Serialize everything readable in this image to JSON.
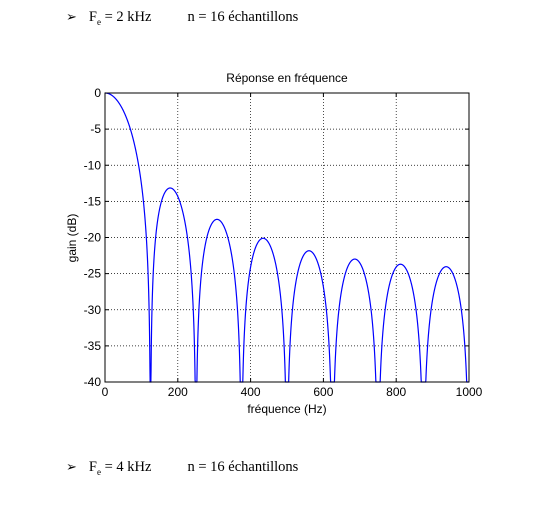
{
  "document": {
    "line1": {
      "bullet": "➢",
      "fe_var": "F",
      "fe_sub": "e",
      "fe_val": " = 2 kHz",
      "n": "n = 16 échantillons"
    },
    "line2": {
      "bullet": "➢",
      "fe_var": "F",
      "fe_sub": "e",
      "fe_val": " = 4 kHz",
      "n": "n = 16 échantillons"
    }
  },
  "chart_data": {
    "type": "line",
    "title": "Réponse en fréquence",
    "xlabel": "fréquence (Hz)",
    "ylabel": "gain (dB)",
    "xlim": [
      0,
      1000
    ],
    "ylim": [
      -40,
      0
    ],
    "xticks": [
      0,
      200,
      400,
      600,
      800,
      1000
    ],
    "yticks": [
      0,
      -5,
      -10,
      -15,
      -20,
      -25,
      -30,
      -35,
      -40
    ],
    "grid": true,
    "line_color": "#0000ff",
    "series": [
      {
        "description_of_form": "moving-average (16 samples, Fe = 2 kHz) magnitude response",
        "N": 16,
        "fs": 2000,
        "x": [
          0,
          20,
          40,
          60,
          80,
          100,
          115,
          125,
          135,
          150,
          175,
          200,
          225,
          240,
          250,
          260,
          275,
          300,
          325,
          350,
          365,
          375,
          385,
          400,
          425,
          450,
          475,
          490,
          500,
          510,
          525,
          550,
          575,
          600,
          615,
          625,
          635,
          650,
          675,
          700,
          725,
          740,
          750,
          760,
          775,
          800,
          825,
          850,
          865,
          875,
          885,
          900,
          925,
          950,
          975,
          990,
          1000
        ],
        "y": [
          0,
          -0.5,
          -2.0,
          -4.7,
          -9.0,
          -15.6,
          -24.0,
          -40.0,
          -23.6,
          -16.3,
          -13.3,
          -14.2,
          -18.5,
          -26.0,
          -40.0,
          -25.9,
          -19.8,
          -17.6,
          -19.4,
          -26.1,
          -34.0,
          -40.0,
          -34.3,
          -25.0,
          -20.3,
          -20.1,
          -24.0,
          -30.5,
          -40.0,
          -30.3,
          -24.4,
          -21.6,
          -22.2,
          -26.8,
          -33.5,
          -40.0,
          -33.6,
          -26.7,
          -23.2,
          -23.0,
          -25.7,
          -31.0,
          -40.0,
          -31.0,
          -25.6,
          -23.5,
          -23.7,
          -27.5,
          -34.0,
          -40.0,
          -34.0,
          -27.3,
          -24.0,
          -24.2,
          -28.0,
          -34.0,
          -40.0
        ]
      }
    ]
  }
}
